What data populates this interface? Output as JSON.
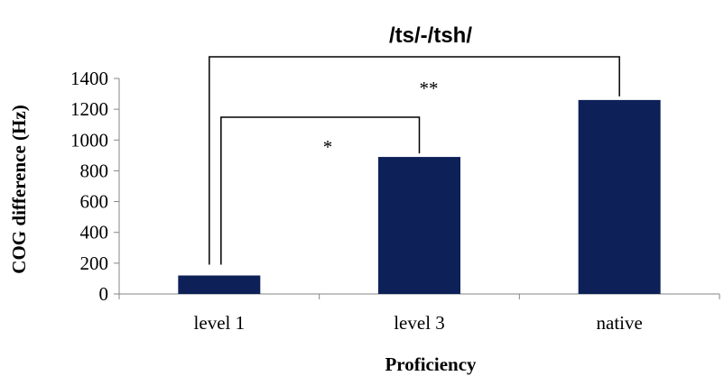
{
  "chart_data": {
    "type": "bar",
    "title": "/ts/-/tsh/",
    "xlabel": "Proficiency",
    "ylabel": "COG difference (Hz)",
    "categories": [
      "level 1",
      "level 3",
      "native"
    ],
    "values": [
      120,
      890,
      1260
    ],
    "ylim": [
      0,
      1400
    ],
    "yticks": [
      0,
      200,
      400,
      600,
      800,
      1000,
      1200,
      1400
    ],
    "bar_color": "#0d2158",
    "grid": false,
    "legend": "none",
    "significance": [
      {
        "from": "level 1",
        "to": "level 3",
        "label": "*"
      },
      {
        "from": "level 1",
        "to": "native",
        "label": "**"
      }
    ]
  }
}
